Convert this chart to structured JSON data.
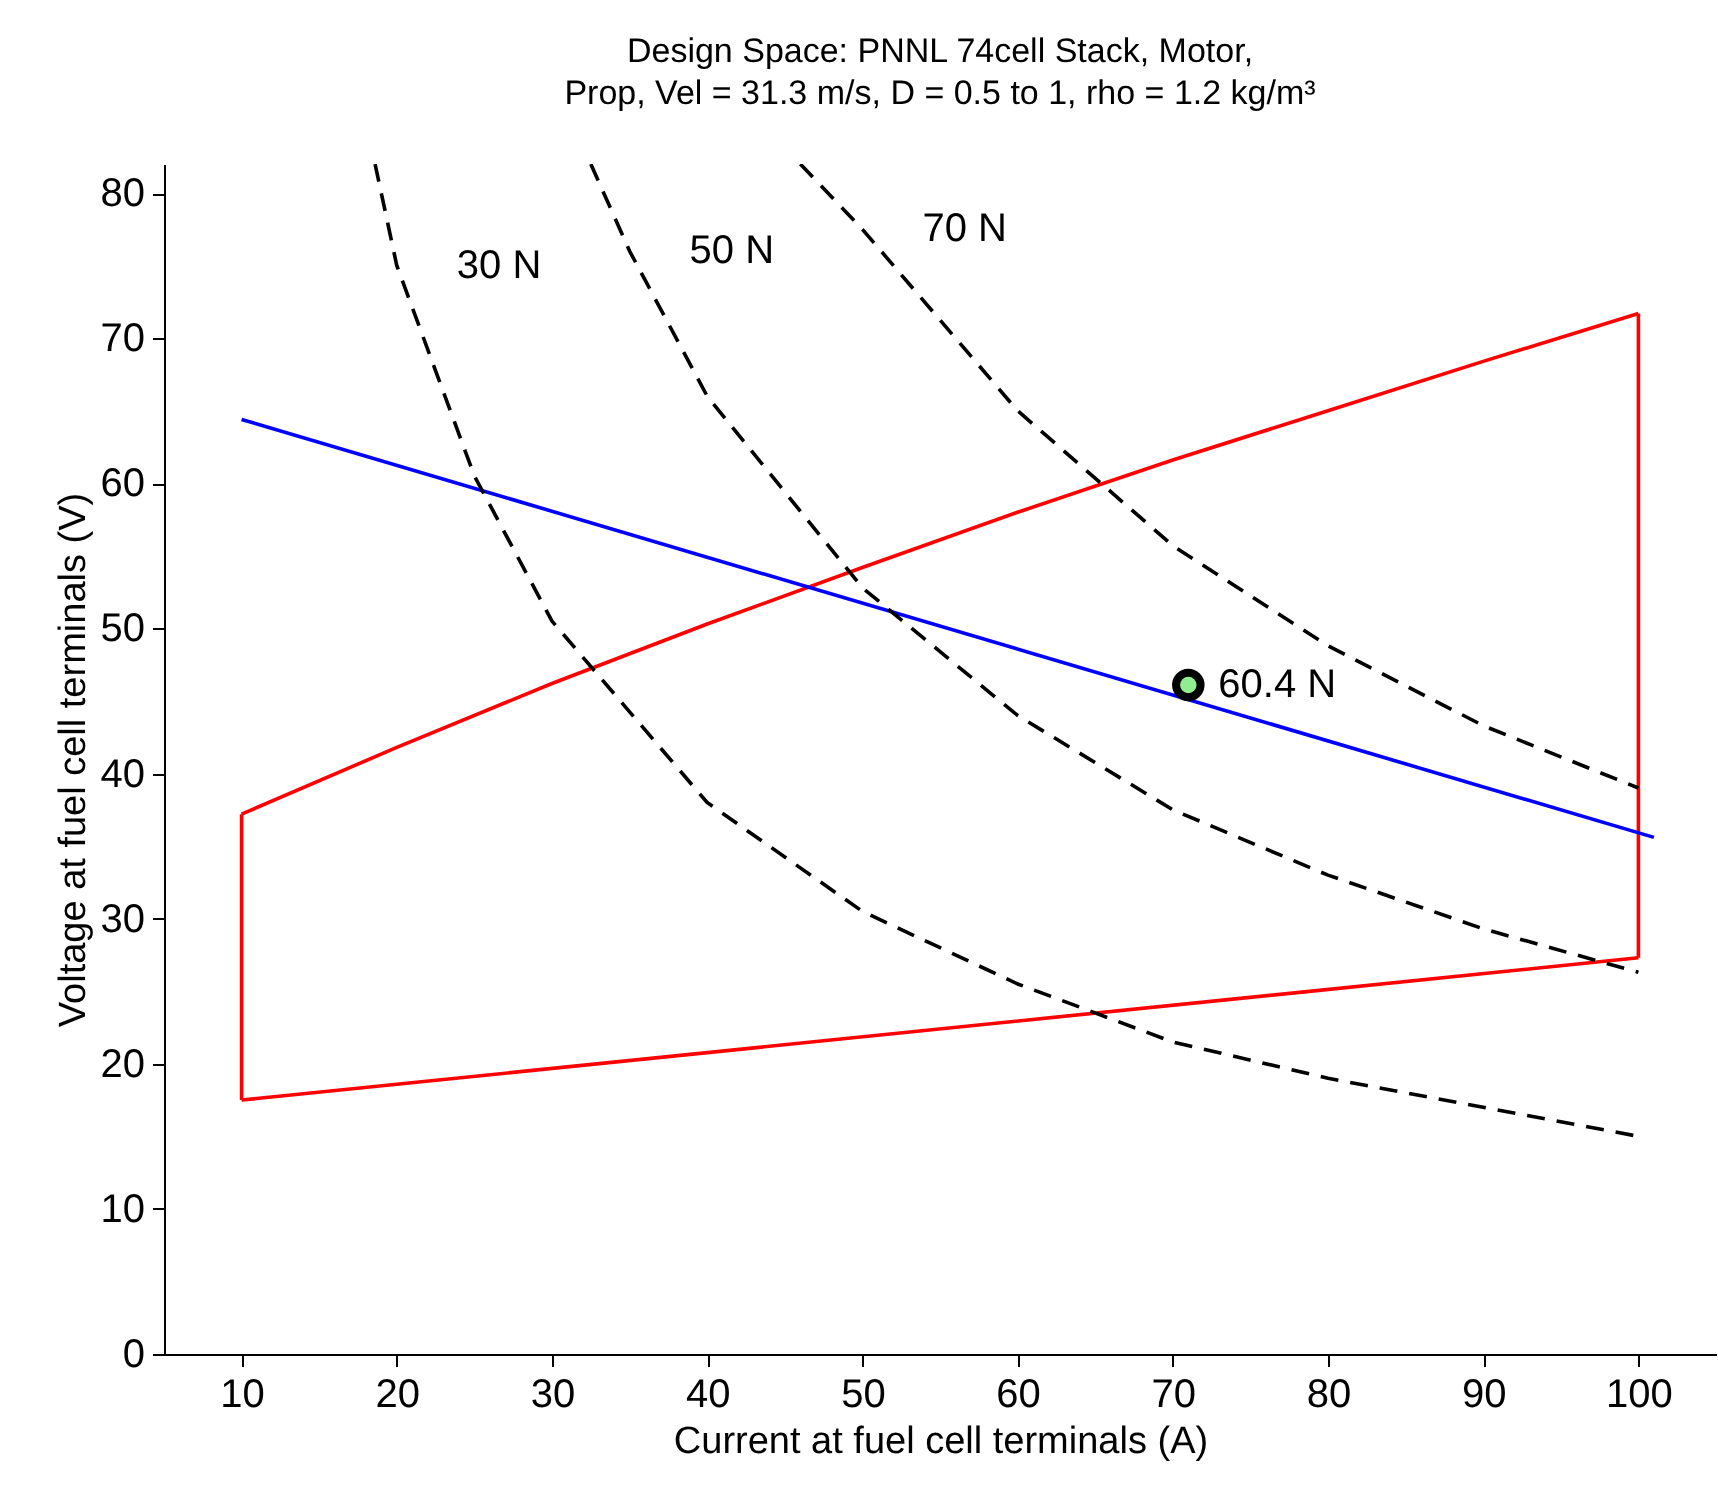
{
  "chart_data": {
    "type": "line",
    "title": "Design Space: PNNL 74cell Stack, Motor,",
    "subtitle": "Prop, Vel = 31.3 m/s, D = 0.5 to 1, rho = 1.2 kg/m³",
    "xlabel": "Current at fuel cell terminals (A)",
    "ylabel": "Voltage at fuel cell terminals (V)",
    "xlim": [
      5,
      105
    ],
    "ylim": [
      0,
      82
    ],
    "xticks": [
      10,
      20,
      30,
      40,
      50,
      60,
      70,
      80,
      90,
      100
    ],
    "yticks": [
      0,
      10,
      20,
      30,
      40,
      50,
      60,
      70,
      80
    ],
    "grid": false,
    "series": [
      {
        "color": "#ff0000",
        "line_style": "solid",
        "x": [
          10,
          100
        ],
        "values": [
          17.5,
          27.3
        ]
      },
      {
        "color": "#ff0000",
        "line_style": "solid",
        "x": [
          100,
          100
        ],
        "values": [
          27.3,
          71.7
        ]
      },
      {
        "color": "#ff0000",
        "line_style": "solid",
        "x": [
          10,
          20,
          30,
          40,
          50,
          60,
          70,
          80,
          90,
          100
        ],
        "values": [
          37.2,
          41.8,
          46.2,
          50.3,
          54.2,
          58.0,
          61.6,
          65.0,
          68.4,
          71.7
        ]
      },
      {
        "color": "#ff0000",
        "line_style": "solid",
        "x": [
          10,
          10
        ],
        "values": [
          17.5,
          37.2
        ]
      },
      {
        "color": "#0000ff",
        "line_style": "solid",
        "x": [
          10,
          101
        ],
        "values": [
          64.4,
          35.6
        ]
      },
      {
        "name": "30 N",
        "color": "#000000",
        "line_style": "dashed",
        "x": [
          18.6,
          20,
          25,
          30,
          40,
          50,
          60,
          70,
          80,
          90,
          100
        ],
        "values": [
          82,
          75,
          60.5,
          50.5,
          38,
          30.5,
          25.5,
          21.5,
          19,
          17,
          15
        ]
      },
      {
        "name": "50 N",
        "color": "#000000",
        "line_style": "dashed",
        "x": [
          32.5,
          35,
          40,
          50,
          60,
          70,
          80,
          90,
          100
        ],
        "values": [
          82,
          76,
          66,
          52.8,
          44,
          37.5,
          33,
          29.3,
          26.3
        ]
      },
      {
        "name": "70 N",
        "color": "#000000",
        "line_style": "dashed",
        "x": [
          46,
          50,
          60,
          70,
          80,
          90,
          100
        ],
        "values": [
          82,
          77.5,
          65,
          55.7,
          48.8,
          43.3,
          39
        ]
      },
      {
        "name": "60.4 N",
        "type": "scatter",
        "color": "#90ee90",
        "marker": "circle",
        "x": [
          71
        ],
        "values": [
          46.1
        ]
      }
    ]
  }
}
